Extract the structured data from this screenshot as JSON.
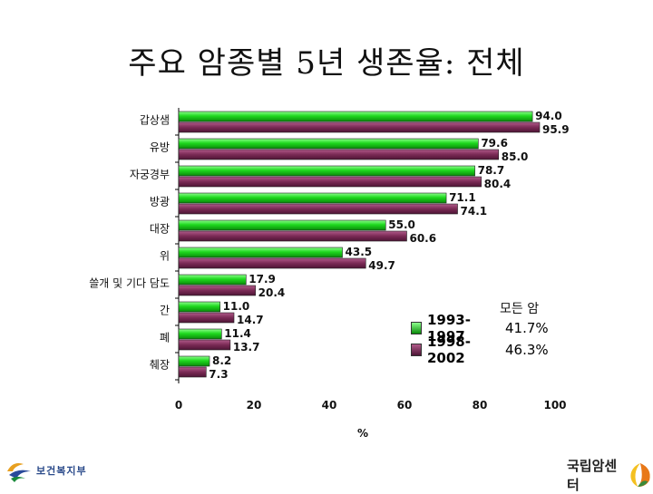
{
  "title": "주요 암종별 5년 생존율: 전체",
  "chart_data": {
    "type": "bar",
    "orientation": "horizontal",
    "categories": [
      "갑상샘",
      "유방",
      "자궁경부",
      "방광",
      "대장",
      "위",
      "쓸개 및 기다 담도",
      "간",
      "폐",
      "췌장"
    ],
    "series": [
      {
        "name": "1993-1997",
        "values": [
          94.0,
          79.6,
          78.7,
          71.1,
          55.0,
          43.5,
          17.9,
          11.0,
          11.4,
          8.2
        ],
        "labels": [
          "94.0",
          "79.6",
          "78.7",
          "71.1",
          "55.0",
          "43.5",
          "17.9",
          "11.0",
          "11.4",
          "8.2"
        ],
        "color": "#22cc22"
      },
      {
        "name": "1998-2002",
        "values": [
          95.9,
          85.0,
          80.4,
          74.1,
          60.6,
          49.7,
          20.4,
          14.7,
          13.7,
          7.3
        ],
        "labels": [
          "95.9",
          "85.0",
          "80.4",
          "74.1",
          "60.6",
          "49.7",
          "20.4",
          "14.7",
          "13.7",
          "7.3"
        ],
        "color": "#7a2a55"
      }
    ],
    "xlim": [
      0,
      100
    ],
    "xticks": [
      "0",
      "20",
      "40",
      "60",
      "80",
      "100"
    ],
    "xlabel": "%",
    "legend_position": "bottom-right",
    "grid": false
  },
  "legend": {
    "header": "모든 암",
    "items": [
      {
        "label": "1993-1997",
        "value": "41.7%",
        "color": "#22cc22"
      },
      {
        "label": "1998-2002",
        "value": "46.3%",
        "color": "#7a2a55"
      }
    ]
  },
  "logos": {
    "left_text": "보건복지부",
    "right_text": "국립암센터"
  }
}
